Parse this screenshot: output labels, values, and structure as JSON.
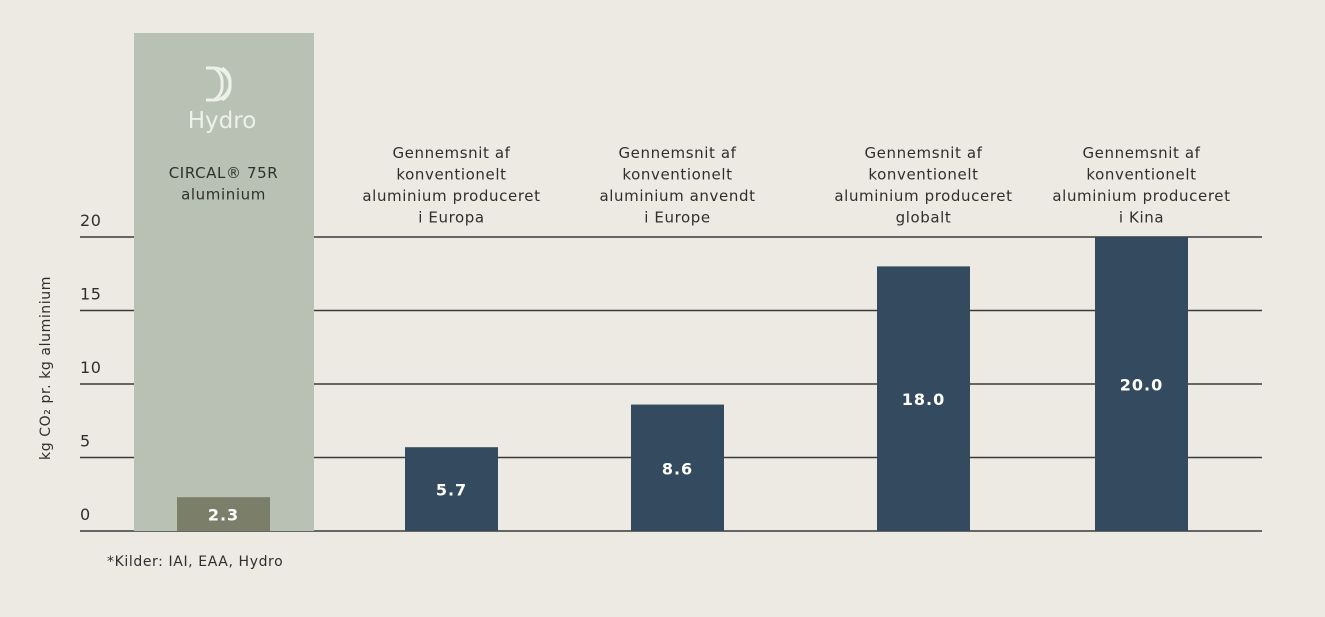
{
  "chart_data": {
    "type": "bar",
    "logo_text": "Hydro",
    "y_label": "kg CO₂ pr. kg aluminium",
    "footnote": "*Kilder: IAI, EAA, Hydro",
    "categories": [
      [
        "CIRCAL® 75R",
        "aluminium"
      ],
      [
        "Gennemsnit af",
        "konventionelt",
        "aluminium produceret",
        "i Europa"
      ],
      [
        "Gennemsnit af",
        "konventionelt",
        "aluminium anvendt",
        "i Europe"
      ],
      [
        "Gennemsnit af",
        "konventionelt",
        "aluminium produceret",
        "globalt"
      ],
      [
        "Gennemsnit af",
        "konventionelt",
        "aluminium produceret",
        "i Kina"
      ]
    ],
    "values": [
      2.3,
      5.7,
      8.6,
      18,
      20
    ],
    "value_labels": [
      "2.3",
      "5.7",
      "8.6",
      "18.0",
      "20.0"
    ],
    "colors": [
      "#7b7f6a",
      "#344a5e",
      "#344a5e",
      "#344a5e",
      "#344a5e"
    ],
    "highlight_color": "#b9c1b5",
    "ylim": [
      0,
      20
    ],
    "yticks": [
      0,
      5,
      10,
      15,
      20
    ],
    "grid": true
  }
}
